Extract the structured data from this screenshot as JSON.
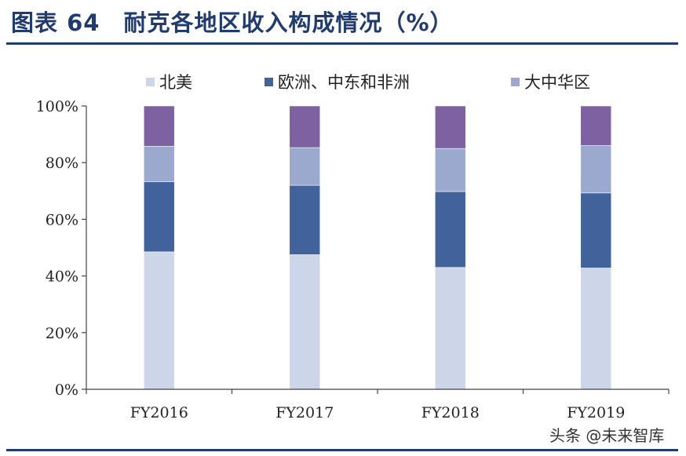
{
  "header": {
    "title": "图表 64　耐克各地区收入构成情况（%）"
  },
  "watermark": {
    "text": "头条 @未来智库"
  },
  "chart_data": {
    "type": "bar",
    "stacked": true,
    "categories": [
      "FY2016",
      "FY2017",
      "FY2018",
      "FY2019"
    ],
    "series": [
      {
        "name": "北美",
        "color": "#cdd5e8",
        "values": [
          48.5,
          47.5,
          43.0,
          42.8
        ]
      },
      {
        "name": "欧洲、中东和非洲",
        "color": "#41629a",
        "values": [
          24.8,
          24.5,
          26.8,
          26.5
        ]
      },
      {
        "name": "大中华区",
        "color": "#9aa9cd",
        "values": [
          12.5,
          13.3,
          15.2,
          16.7
        ]
      },
      {
        "name": "",
        "color": "#7d61a0",
        "values": [
          14.2,
          14.7,
          15.0,
          14.0
        ]
      }
    ],
    "ylim": [
      0,
      100
    ],
    "yticks": [
      "0%",
      "20%",
      "40%",
      "60%",
      "80%",
      "100%"
    ],
    "legend_position": "top",
    "grid": false
  }
}
